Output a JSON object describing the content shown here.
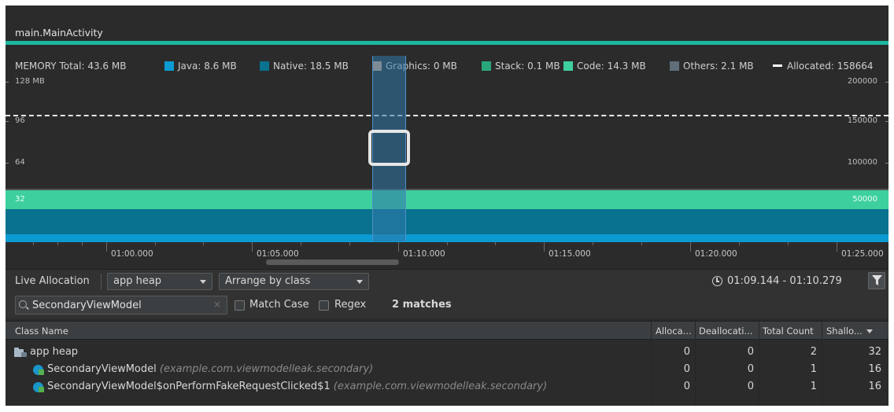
{
  "session": {
    "title": "main.MainActivity"
  },
  "memory": {
    "label": "MEMORY",
    "legend": [
      {
        "key": "total",
        "text": "Total: 43.6 MB"
      },
      {
        "key": "java",
        "text": "Java: 8.6 MB",
        "color": "#0c9ad2"
      },
      {
        "key": "native",
        "text": "Native: 18.5 MB",
        "color": "#08728f"
      },
      {
        "key": "graphics",
        "text": "Graphics: 0 MB",
        "color": "#d8a37c"
      },
      {
        "key": "stack",
        "text": "Stack: 0.1 MB",
        "color": "#2aa77a"
      },
      {
        "key": "code",
        "text": "Code: 14.3 MB",
        "color": "#3ecf9e"
      },
      {
        "key": "others",
        "text": "Others: 2.1 MB",
        "color": "#5f6e78"
      },
      {
        "key": "allocated",
        "text": "Allocated: 158664"
      }
    ],
    "left_axis": [
      "128 MB",
      "96",
      "64",
      "32"
    ],
    "right_axis": [
      "200000",
      "150000",
      "100000",
      "50000"
    ]
  },
  "timeline": {
    "ticks": [
      "01:00.000",
      "01:05.000",
      "01:10.000",
      "01:15.000",
      "01:20.000",
      "01:25.000"
    ]
  },
  "toolbar": {
    "live_allocation": "Live Allocation",
    "heap_select": "app heap",
    "arrange_select": "Arrange by class",
    "time_range": "01:09.144 - 01:10.279"
  },
  "search": {
    "value": "SecondaryViewModel",
    "clear": "×",
    "match_case": "Match Case",
    "regex": "Regex",
    "matches": "2 matches"
  },
  "table": {
    "headers": [
      "Class Name",
      "Alloca...",
      "Deallocati...",
      "Total Count",
      "Shallo..."
    ],
    "rows": [
      {
        "name": "app heap",
        "pkg": "",
        "alloc": "0",
        "dealloc": "0",
        "total": "2",
        "shallow": "32"
      },
      {
        "name": "SecondaryViewModel",
        "pkg": "(example.com.viewmodelleak.secondary)",
        "alloc": "0",
        "dealloc": "0",
        "total": "1",
        "shallow": "16"
      },
      {
        "name": "SecondaryViewModel$onPerformFakeRequestClicked$1",
        "pkg": "(example.com.viewmodelleak.secondary)",
        "alloc": "0",
        "dealloc": "0",
        "total": "1",
        "shallow": "16"
      }
    ]
  }
}
